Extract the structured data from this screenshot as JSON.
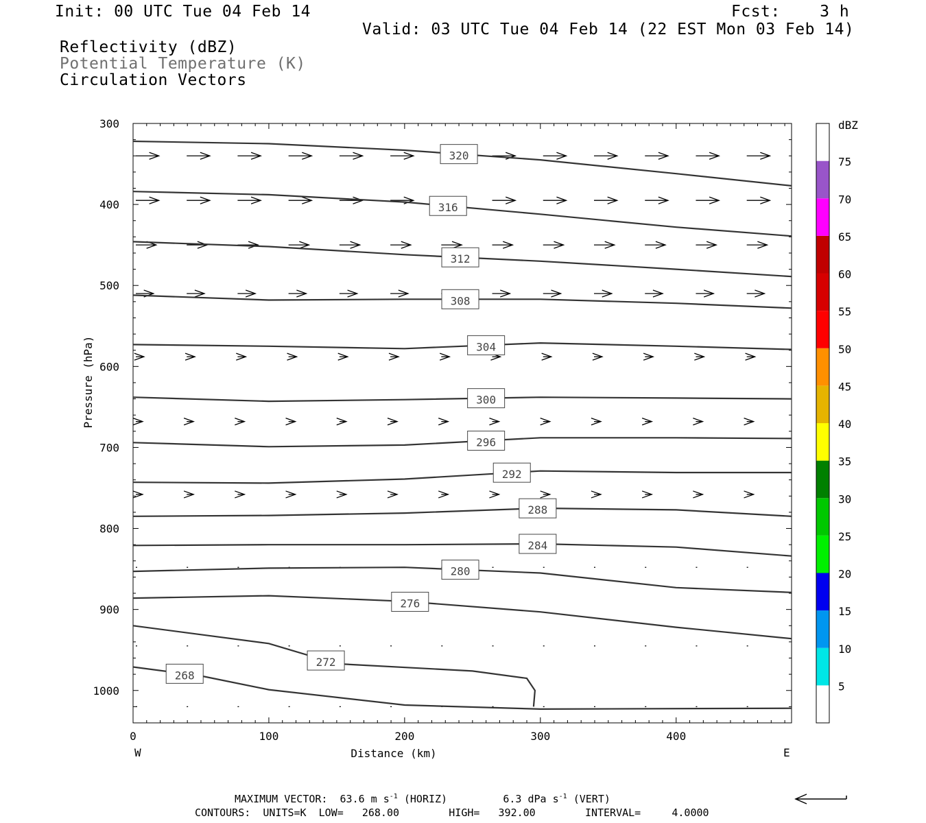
{
  "header": {
    "init": "Init: 00 UTC Tue 04 Feb 14",
    "fcst": "Fcst:    3 h",
    "valid": "Valid: 03 UTC Tue 04 Feb 14 (22 EST Mon 03 Feb 14)",
    "fields": [
      "Reflectivity (dBZ)",
      "Potential Temperature (K)",
      "Circulation Vectors"
    ]
  },
  "footer": {
    "max_vector_label": "MAXIMUM VECTOR:",
    "max_horiz": "63.6 m s",
    "max_horiz_unit": "(HORIZ)",
    "max_vert": "6.3 dPa s",
    "max_vert_unit": "(VERT)",
    "exponent": "-1",
    "contours": "CONTOURS:  UNITS=K  LOW=   268.00        HIGH=   392.00        INTERVAL=     4.0000"
  },
  "colors": {
    "contour": "#333333",
    "gray_text": "#6f6f6f"
  },
  "chart_data": {
    "type": "contour",
    "title": "",
    "xlabel": "Distance (km)",
    "ylabel": "Pressure (hPa)",
    "xlim": [
      0,
      485
    ],
    "ylim": [
      1040,
      300
    ],
    "x_ticks": [
      0,
      100,
      200,
      300,
      400
    ],
    "y_ticks": [
      300,
      400,
      500,
      600,
      700,
      800,
      900,
      1000
    ],
    "x_end_labels": {
      "left": "W",
      "right": "E"
    },
    "colorbar": {
      "label": "dBZ",
      "levels": [
        5,
        10,
        15,
        20,
        25,
        30,
        35,
        40,
        45,
        50,
        55,
        60,
        65,
        70,
        75
      ],
      "colors": [
        "#00e6e6",
        "#0096f0",
        "#0000f0",
        "#00f000",
        "#00c800",
        "#008000",
        "#ffff00",
        "#e6b400",
        "#ff9000",
        "#ff0000",
        "#d60000",
        "#c00000",
        "#ff00ff",
        "#9955c9",
        "#ffffff"
      ]
    },
    "contours": [
      {
        "label": "320",
        "label_x": 240,
        "points": [
          [
            0,
            322
          ],
          [
            100,
            325
          ],
          [
            200,
            333
          ],
          [
            300,
            345
          ],
          [
            400,
            362
          ],
          [
            485,
            377
          ]
        ]
      },
      {
        "label": "316",
        "label_x": 232,
        "points": [
          [
            0,
            384
          ],
          [
            100,
            388
          ],
          [
            200,
            397
          ],
          [
            300,
            412
          ],
          [
            400,
            428
          ],
          [
            485,
            439
          ]
        ]
      },
      {
        "label": "312",
        "label_x": 241,
        "points": [
          [
            0,
            446
          ],
          [
            100,
            452
          ],
          [
            200,
            462
          ],
          [
            300,
            470
          ],
          [
            400,
            480
          ],
          [
            485,
            489
          ]
        ]
      },
      {
        "label": "308",
        "label_x": 241,
        "points": [
          [
            0,
            512
          ],
          [
            100,
            518
          ],
          [
            200,
            517
          ],
          [
            300,
            517
          ],
          [
            400,
            522
          ],
          [
            485,
            528
          ]
        ]
      },
      {
        "label": "304",
        "label_x": 260,
        "points": [
          [
            0,
            573
          ],
          [
            100,
            575
          ],
          [
            200,
            578
          ],
          [
            300,
            571
          ],
          [
            400,
            575
          ],
          [
            485,
            579
          ]
        ]
      },
      {
        "label": "300",
        "label_x": 260,
        "points": [
          [
            0,
            638
          ],
          [
            100,
            643
          ],
          [
            200,
            641
          ],
          [
            300,
            638
          ],
          [
            400,
            639
          ],
          [
            485,
            640
          ]
        ]
      },
      {
        "label": "296",
        "label_x": 260,
        "points": [
          [
            0,
            694
          ],
          [
            100,
            699
          ],
          [
            200,
            697
          ],
          [
            300,
            688
          ],
          [
            400,
            688
          ],
          [
            485,
            689
          ]
        ]
      },
      {
        "label": "292",
        "label_x": 279,
        "points": [
          [
            0,
            743
          ],
          [
            100,
            744
          ],
          [
            200,
            739
          ],
          [
            300,
            729
          ],
          [
            400,
            731
          ],
          [
            485,
            731
          ]
        ]
      },
      {
        "label": "288",
        "label_x": 298,
        "points": [
          [
            0,
            785
          ],
          [
            100,
            784
          ],
          [
            200,
            781
          ],
          [
            300,
            775
          ],
          [
            400,
            777
          ],
          [
            485,
            785
          ]
        ]
      },
      {
        "label": "284",
        "label_x": 298,
        "points": [
          [
            0,
            821
          ],
          [
            100,
            820
          ],
          [
            200,
            820
          ],
          [
            300,
            819
          ],
          [
            400,
            823
          ],
          [
            485,
            834
          ]
        ]
      },
      {
        "label": "280",
        "label_x": 241,
        "points": [
          [
            0,
            853
          ],
          [
            100,
            849
          ],
          [
            200,
            848
          ],
          [
            300,
            855
          ],
          [
            400,
            873
          ],
          [
            485,
            879
          ]
        ]
      },
      {
        "label": "276",
        "label_x": 204,
        "points": [
          [
            0,
            886
          ],
          [
            100,
            883
          ],
          [
            200,
            890
          ],
          [
            300,
            903
          ],
          [
            400,
            922
          ],
          [
            485,
            936
          ]
        ]
      },
      {
        "label": "272",
        "label_x": 142,
        "points": [
          [
            0,
            920
          ],
          [
            100,
            942
          ],
          [
            150,
            967
          ],
          [
            250,
            976
          ],
          [
            290,
            985
          ],
          [
            296,
            1000
          ],
          [
            295,
            1020
          ]
        ]
      },
      {
        "label": "268",
        "label_x": 38,
        "points": [
          [
            0,
            971
          ],
          [
            50,
            982
          ],
          [
            100,
            999
          ],
          [
            200,
            1018
          ],
          [
            300,
            1023
          ],
          [
            485,
            1022
          ]
        ]
      }
    ],
    "vector_rows_hPa": [
      340,
      395,
      450,
      510,
      588,
      668,
      758,
      848,
      945,
      1020
    ],
    "vector_row_lengths_km": [
      17,
      17,
      15,
      13,
      6,
      5,
      5,
      1,
      1,
      1
    ]
  }
}
